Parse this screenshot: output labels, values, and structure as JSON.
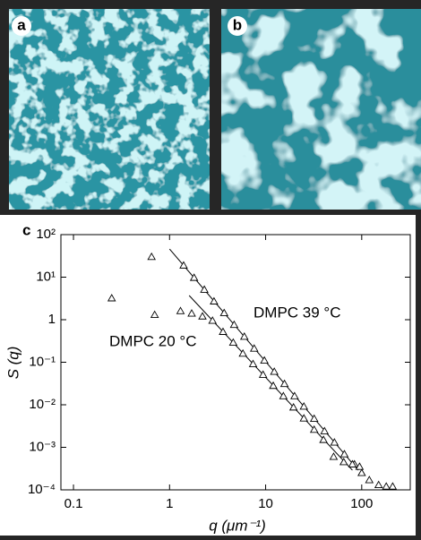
{
  "panel_labels": [
    "a",
    "b"
  ],
  "chart_data": {
    "type": "scatter",
    "label": "c",
    "xlabel": "q (μm⁻¹)",
    "ylabel": "S (q)",
    "xscale": "log",
    "yscale": "log",
    "xlim": [
      0.074,
      320
    ],
    "ylim": [
      0.0001,
      100
    ],
    "xticks": [
      0.1,
      1,
      10,
      100
    ],
    "yticks": [
      {
        "value": 100,
        "label": "10²"
      },
      {
        "value": 10,
        "label": "10¹"
      },
      1,
      {
        "value": 0.1,
        "label": "10⁻¹"
      },
      {
        "value": 0.01,
        "label": "10⁻²"
      },
      {
        "value": 0.001,
        "label": "10⁻³"
      },
      {
        "value": 0.0001,
        "label": "10⁻⁴"
      }
    ],
    "series": [
      {
        "name": "DMPC 39 °C",
        "color": "#000000",
        "x": [
          0.65,
          1.4,
          1.8,
          2.3,
          2.9,
          3.7,
          4.7,
          6,
          7.6,
          9.7,
          12.3,
          15.7,
          20,
          25,
          32,
          41,
          52,
          66,
          84,
          100,
          120,
          150,
          180,
          210
        ],
        "values": [
          30,
          18.9,
          9.7,
          5.1,
          2.7,
          1.44,
          0.76,
          0.4,
          0.21,
          0.11,
          0.06,
          0.031,
          0.016,
          0.0091,
          0.0047,
          0.0024,
          0.0013,
          0.00069,
          0.0004,
          0.00025,
          0.00017,
          0.00013,
          0.00012,
          0.00012
        ]
      },
      {
        "name": "DMPC 20 °C",
        "color": "#000000",
        "x": [
          0.25,
          0.7,
          1.3,
          1.7,
          2.2,
          2.8,
          3.6,
          4.6,
          5.8,
          7.4,
          9.4,
          12,
          15.3,
          19.5,
          25,
          32,
          40,
          51,
          65,
          80,
          95
        ],
        "values": [
          3.2,
          1.3,
          1.6,
          1.4,
          1.2,
          0.95,
          0.52,
          0.29,
          0.16,
          0.091,
          0.051,
          0.028,
          0.016,
          0.0087,
          0.0048,
          0.0026,
          0.0015,
          0.0006,
          0.00045,
          0.0004,
          0.00035
        ]
      }
    ],
    "fits": [
      {
        "x": [
          1,
          92
        ],
        "values": [
          46,
          0.00029
        ]
      },
      {
        "x": [
          1.6,
          80
        ],
        "values": [
          3.7,
          0.00029
        ]
      }
    ]
  }
}
